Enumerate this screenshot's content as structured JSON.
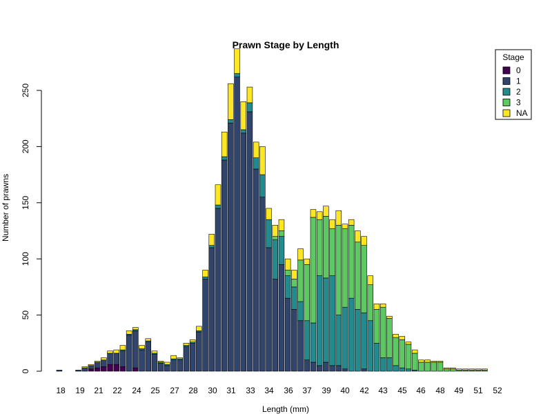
{
  "chart_data": {
    "type": "bar",
    "stacked": true,
    "title": "Prawn Stage by Length",
    "xlabel": "Length (mm)",
    "ylabel": "Number of prawns",
    "ylim": [
      0,
      290
    ],
    "y_ticks": [
      0,
      50,
      100,
      150,
      200,
      250
    ],
    "x_tick_labels": [
      "18",
      "19",
      "21",
      "22",
      "24",
      "25",
      "27",
      "28",
      "30",
      "31",
      "33",
      "34",
      "36",
      "37",
      "39",
      "40",
      "42",
      "43",
      "45",
      "46",
      "48",
      "49",
      "51",
      "52"
    ],
    "grid": false,
    "legend": {
      "title": "Stage",
      "position": "top-right"
    },
    "categories": [
      "18",
      "18.5",
      "19",
      "19.5",
      "20",
      "20.5",
      "21",
      "21.5",
      "22",
      "22.5",
      "23",
      "23.5",
      "24",
      "24.5",
      "25",
      "25.5",
      "26",
      "26.5",
      "27",
      "27.5",
      "28",
      "28.5",
      "29",
      "29.5",
      "30",
      "30.5",
      "31",
      "31.5",
      "32",
      "32.5",
      "33",
      "33.5",
      "34",
      "34.5",
      "35",
      "35.5",
      "36",
      "36.5",
      "37",
      "37.5",
      "38",
      "38.5",
      "39",
      "39.5",
      "40",
      "40.5",
      "41",
      "41.5",
      "42",
      "42.5",
      "43",
      "43.5",
      "44",
      "44.5",
      "45",
      "45.5",
      "46",
      "46.5",
      "47",
      "47.5",
      "48",
      "48.5",
      "49",
      "49.5",
      "50",
      "50.5",
      "51",
      "51.5",
      "52",
      "52.5"
    ],
    "series": [
      {
        "name": "0",
        "color": "#440154",
        "values": [
          0,
          0,
          0,
          0,
          0,
          2,
          3,
          4,
          6,
          6,
          4,
          0,
          3,
          0,
          0,
          0,
          0,
          0,
          0,
          0,
          0,
          0,
          0,
          0,
          0,
          0,
          0,
          0,
          0,
          0,
          0,
          0,
          0,
          0,
          0,
          0,
          0,
          0,
          0,
          0,
          0,
          0,
          0,
          0,
          0,
          0,
          0,
          0,
          0,
          0,
          0,
          0,
          0,
          0,
          0,
          0,
          0,
          0,
          0,
          0,
          0,
          0,
          0,
          0,
          0,
          0,
          0,
          0,
          0,
          0
        ]
      },
      {
        "name": "1",
        "color": "#31446b",
        "values": [
          1,
          0,
          0,
          1,
          3,
          3,
          5,
          6,
          10,
          10,
          14,
          32,
          33,
          19,
          26,
          15,
          7,
          5,
          10,
          10,
          22,
          25,
          35,
          82,
          110,
          145,
          188,
          221,
          262,
          212,
          231,
          180,
          155,
          110,
          82,
          95,
          65,
          55,
          45,
          10,
          8,
          5,
          8,
          5,
          5,
          2,
          0,
          0,
          2,
          0,
          0,
          0,
          0,
          0,
          0,
          0,
          0,
          0,
          0,
          0,
          0,
          0,
          0,
          0,
          0,
          0,
          0,
          0,
          0,
          0
        ]
      },
      {
        "name": "2",
        "color": "#238a8d",
        "values": [
          0,
          0,
          0,
          0,
          0,
          0,
          0,
          0,
          0,
          0,
          1,
          1,
          1,
          1,
          1,
          1,
          1,
          1,
          1,
          1,
          1,
          1,
          1,
          2,
          2,
          3,
          3,
          3,
          3,
          3,
          8,
          10,
          20,
          25,
          35,
          25,
          20,
          20,
          17,
          35,
          35,
          80,
          75,
          80,
          45,
          55,
          65,
          55,
          50,
          45,
          25,
          12,
          12,
          5,
          3,
          2,
          1,
          0,
          0,
          0,
          0,
          0,
          0,
          0,
          0,
          0,
          0,
          0,
          0,
          0
        ]
      },
      {
        "name": "3",
        "color": "#5ec962",
        "values": [
          0,
          0,
          0,
          0,
          0,
          0,
          0,
          0,
          0,
          0,
          0,
          0,
          0,
          0,
          0,
          0,
          0,
          0,
          0,
          0,
          0,
          0,
          0,
          0,
          0,
          0,
          0,
          0,
          0,
          0,
          0,
          0,
          0,
          0,
          3,
          5,
          5,
          7,
          37,
          50,
          94,
          50,
          55,
          42,
          80,
          70,
          65,
          60,
          60,
          32,
          30,
          45,
          35,
          25,
          25,
          22,
          15,
          8,
          8,
          8,
          8,
          2,
          2,
          1,
          1,
          1,
          1,
          1,
          0,
          0
        ]
      },
      {
        "name": "NA",
        "color": "#fde725",
        "values": [
          0,
          0,
          0,
          0,
          1,
          1,
          1,
          2,
          2,
          3,
          4,
          3,
          2,
          3,
          2,
          2,
          1,
          2,
          3,
          1,
          2,
          2,
          4,
          6,
          10,
          18,
          22,
          32,
          22,
          25,
          14,
          14,
          25,
          10,
          10,
          10,
          10,
          8,
          10,
          5,
          7,
          7,
          9,
          8,
          13,
          4,
          5,
          10,
          8,
          8,
          5,
          3,
          2,
          3,
          3,
          2,
          3,
          2,
          2,
          1,
          1,
          1,
          1,
          1,
          1,
          1,
          1,
          1,
          0,
          0
        ]
      }
    ]
  }
}
